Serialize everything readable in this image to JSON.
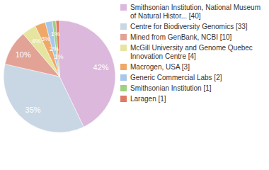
{
  "chart_data": {
    "type": "pie",
    "categories": [
      "Smithsonian Institution, National Museum of Natural Histor... [40]",
      "Centre for Biodiversity Genomics [33]",
      "Mined from GenBank, NCBI [10]",
      "McGill University and Genome Quebec Innovation Centre [4]",
      "Macrogen, USA [3]",
      "Generic Commercial Labs [2]",
      "Smithsonian Institution [1]",
      "Laragen [1]"
    ],
    "values": [
      42,
      35,
      10,
      4,
      3,
      2,
      1,
      1
    ],
    "value_labels": [
      "42%",
      "35%",
      "10%",
      "4%",
      "3%",
      "2%",
      "1%",
      "1%"
    ],
    "colors": [
      "#dcb8dc",
      "#c9d7e5",
      "#e2a296",
      "#e5e5a0",
      "#f0a868",
      "#a8c8ea",
      "#a0d080",
      "#e07a64"
    ],
    "data_labels": true,
    "legend": "right"
  }
}
